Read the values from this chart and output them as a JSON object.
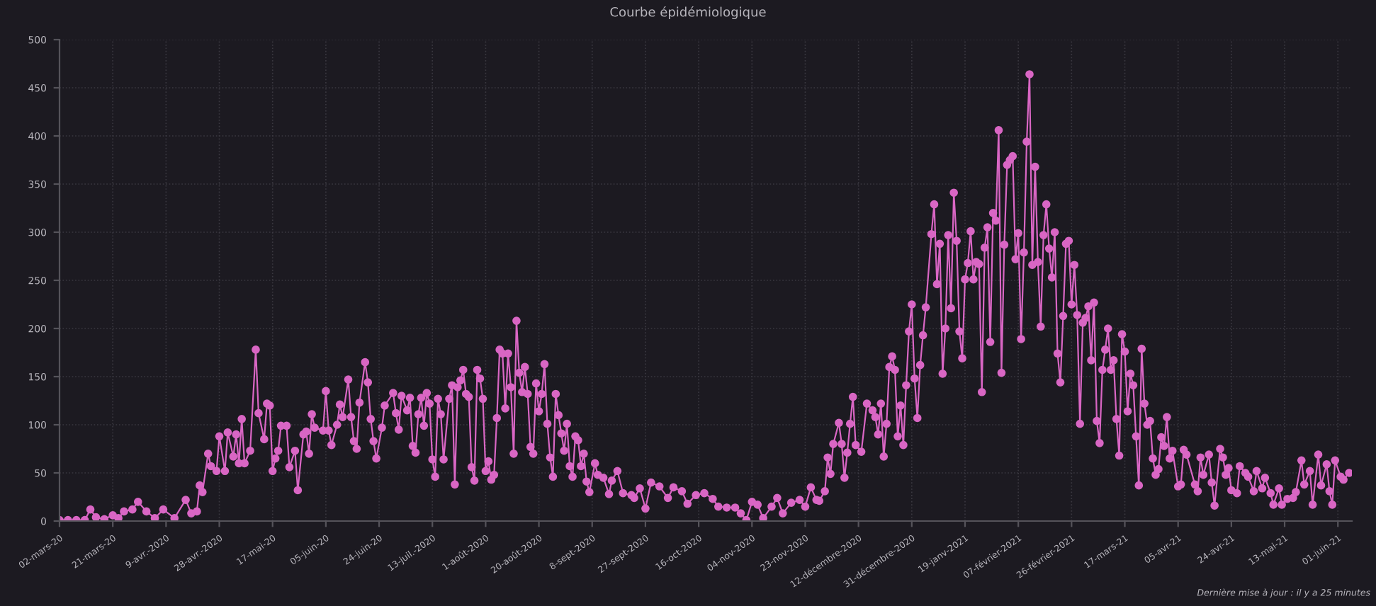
{
  "chart_data": {
    "type": "line",
    "title": "Courbe épidémiologique",
    "annotations": [
      "Dernière mise à jour : il y a 25 minutes"
    ],
    "xlim": [
      "2020-03-02",
      "2021-06-06"
    ],
    "ylim": [
      0,
      500
    ],
    "yticks": [
      0,
      50,
      100,
      150,
      200,
      250,
      300,
      350,
      400,
      450,
      500
    ],
    "xticks": [
      {
        "value": "2020-03-02",
        "label": "02-mars-20"
      },
      {
        "value": "2020-03-21",
        "label": "21-mars-20"
      },
      {
        "value": "2020-04-09",
        "label": "9-avr.-2020"
      },
      {
        "value": "2020-04-28",
        "label": "28-avr.-2020"
      },
      {
        "value": "2020-05-17",
        "label": "17-mai-20"
      },
      {
        "value": "2020-06-05",
        "label": "05-juin-20"
      },
      {
        "value": "2020-06-24",
        "label": "24-juin-20"
      },
      {
        "value": "2020-07-13",
        "label": "13-juil.-2020"
      },
      {
        "value": "2020-08-01",
        "label": "1-août-2020"
      },
      {
        "value": "2020-08-20",
        "label": "20-août-2020"
      },
      {
        "value": "2020-09-08",
        "label": "8-sept-2020"
      },
      {
        "value": "2020-09-27",
        "label": "27-sept-2020"
      },
      {
        "value": "2020-10-16",
        "label": "16-oct-2020"
      },
      {
        "value": "2020-11-04",
        "label": "04-nov-2020"
      },
      {
        "value": "2020-11-23",
        "label": "23-nov-2020"
      },
      {
        "value": "2020-12-12",
        "label": "12-décembre-2020"
      },
      {
        "value": "2020-12-31",
        "label": "31-décembre-2020"
      },
      {
        "value": "2021-01-19",
        "label": "19-janv-2021"
      },
      {
        "value": "2021-02-07",
        "label": "07-février-2021"
      },
      {
        "value": "2021-02-26",
        "label": "26-février-2021"
      },
      {
        "value": "2021-03-17",
        "label": "17-mars-21"
      },
      {
        "value": "2021-04-05",
        "label": "05-avr-21"
      },
      {
        "value": "2021-04-24",
        "label": "24-avr-21"
      },
      {
        "value": "2021-05-13",
        "label": "13-mai-21"
      },
      {
        "value": "2021-06-01",
        "label": "01-juin-21"
      }
    ],
    "grid": true,
    "marker": "circle",
    "line_style": "solid",
    "series": [
      {
        "color": "#d966c4",
        "x": [
          "2020-03-02",
          "2020-03-05",
          "2020-03-08",
          "2020-03-11",
          "2020-03-13",
          "2020-03-15",
          "2020-03-18",
          "2020-03-21",
          "2020-03-23",
          "2020-03-25",
          "2020-03-28",
          "2020-03-30",
          "2020-04-02",
          "2020-04-05",
          "2020-04-08",
          "2020-04-12",
          "2020-04-16",
          "2020-04-18",
          "2020-04-20",
          "2020-04-21",
          "2020-04-22",
          "2020-04-24",
          "2020-04-25",
          "2020-04-27",
          "2020-04-28",
          "2020-04-30",
          "2020-05-01",
          "2020-05-03",
          "2020-05-04",
          "2020-05-05",
          "2020-05-06",
          "2020-05-07",
          "2020-05-09",
          "2020-05-11",
          "2020-05-12",
          "2020-05-14",
          "2020-05-15",
          "2020-05-16",
          "2020-05-17",
          "2020-05-18",
          "2020-05-19",
          "2020-05-20",
          "2020-05-22",
          "2020-05-23",
          "2020-05-25",
          "2020-05-26",
          "2020-05-28",
          "2020-05-29",
          "2020-05-30",
          "2020-05-31",
          "2020-06-01",
          "2020-06-04",
          "2020-06-05",
          "2020-06-06",
          "2020-06-07",
          "2020-06-09",
          "2020-06-10",
          "2020-06-11",
          "2020-06-13",
          "2020-06-14",
          "2020-06-15",
          "2020-06-16",
          "2020-06-17",
          "2020-06-19",
          "2020-06-20",
          "2020-06-21",
          "2020-06-22",
          "2020-06-23",
          "2020-06-25",
          "2020-06-26",
          "2020-06-29",
          "2020-06-30",
          "2020-07-01",
          "2020-07-02",
          "2020-07-04",
          "2020-07-05",
          "2020-07-06",
          "2020-07-07",
          "2020-07-08",
          "2020-07-09",
          "2020-07-10",
          "2020-07-11",
          "2020-07-12",
          "2020-07-13",
          "2020-07-14",
          "2020-07-15",
          "2020-07-16",
          "2020-07-17",
          "2020-07-19",
          "2020-07-20",
          "2020-07-21",
          "2020-07-22",
          "2020-07-23",
          "2020-07-24",
          "2020-07-25",
          "2020-07-26",
          "2020-07-27",
          "2020-07-28",
          "2020-07-29",
          "2020-07-30",
          "2020-07-31",
          "2020-08-01",
          "2020-08-02",
          "2020-08-03",
          "2020-08-04",
          "2020-08-05",
          "2020-08-06",
          "2020-08-07",
          "2020-08-08",
          "2020-08-09",
          "2020-08-10",
          "2020-08-11",
          "2020-08-12",
          "2020-08-13",
          "2020-08-14",
          "2020-08-15",
          "2020-08-16",
          "2020-08-17",
          "2020-08-18",
          "2020-08-19",
          "2020-08-20",
          "2020-08-21",
          "2020-08-22",
          "2020-08-23",
          "2020-08-24",
          "2020-08-25",
          "2020-08-26",
          "2020-08-27",
          "2020-08-28",
          "2020-08-29",
          "2020-08-30",
          "2020-08-31",
          "2020-09-01",
          "2020-09-02",
          "2020-09-03",
          "2020-09-04",
          "2020-09-05",
          "2020-09-06",
          "2020-09-07",
          "2020-09-09",
          "2020-09-10",
          "2020-09-12",
          "2020-09-14",
          "2020-09-15",
          "2020-09-17",
          "2020-09-19",
          "2020-09-22",
          "2020-09-23",
          "2020-09-25",
          "2020-09-27",
          "2020-09-29",
          "2020-10-02",
          "2020-10-05",
          "2020-10-07",
          "2020-10-10",
          "2020-10-12",
          "2020-10-15",
          "2020-10-18",
          "2020-10-21",
          "2020-10-23",
          "2020-10-26",
          "2020-10-29",
          "2020-10-31",
          "2020-11-02",
          "2020-11-04",
          "2020-11-06",
          "2020-11-08",
          "2020-11-11",
          "2020-11-13",
          "2020-11-15",
          "2020-11-18",
          "2020-11-21",
          "2020-11-23",
          "2020-11-25",
          "2020-11-27",
          "2020-11-28",
          "2020-11-30",
          "2020-12-01",
          "2020-12-02",
          "2020-12-03",
          "2020-12-05",
          "2020-12-06",
          "2020-12-07",
          "2020-12-08",
          "2020-12-09",
          "2020-12-10",
          "2020-12-11",
          "2020-12-13",
          "2020-12-15",
          "2020-12-17",
          "2020-12-18",
          "2020-12-19",
          "2020-12-20",
          "2020-12-21",
          "2020-12-22",
          "2020-12-23",
          "2020-12-24",
          "2020-12-25",
          "2020-12-26",
          "2020-12-27",
          "2020-12-28",
          "2020-12-29",
          "2020-12-30",
          "2020-12-31",
          "2021-01-01",
          "2021-01-02",
          "2021-01-03",
          "2021-01-04",
          "2021-01-05",
          "2021-01-07",
          "2021-01-08",
          "2021-01-09",
          "2021-01-10",
          "2021-01-11",
          "2021-01-12",
          "2021-01-13",
          "2021-01-14",
          "2021-01-15",
          "2021-01-16",
          "2021-01-17",
          "2021-01-18",
          "2021-01-19",
          "2021-01-20",
          "2021-01-21",
          "2021-01-22",
          "2021-01-23",
          "2021-01-24",
          "2021-01-25",
          "2021-01-26",
          "2021-01-27",
          "2021-01-28",
          "2021-01-29",
          "2021-01-30",
          "2021-01-31",
          "2021-02-01",
          "2021-02-02",
          "2021-02-03",
          "2021-02-04",
          "2021-02-05",
          "2021-02-06",
          "2021-02-07",
          "2021-02-08",
          "2021-02-09",
          "2021-02-10",
          "2021-02-11",
          "2021-02-12",
          "2021-02-13",
          "2021-02-14",
          "2021-02-15",
          "2021-02-16",
          "2021-02-17",
          "2021-02-18",
          "2021-02-19",
          "2021-02-20",
          "2021-02-21",
          "2021-02-22",
          "2021-02-23",
          "2021-02-24",
          "2021-02-25",
          "2021-02-26",
          "2021-02-27",
          "2021-02-28",
          "2021-03-01",
          "2021-03-02",
          "2021-03-03",
          "2021-03-04",
          "2021-03-05",
          "2021-03-06",
          "2021-03-07",
          "2021-03-08",
          "2021-03-09",
          "2021-03-10",
          "2021-03-11",
          "2021-03-12",
          "2021-03-13",
          "2021-03-14",
          "2021-03-15",
          "2021-03-16",
          "2021-03-17",
          "2021-03-18",
          "2021-03-19",
          "2021-03-20",
          "2021-03-21",
          "2021-03-22",
          "2021-03-23",
          "2021-03-24",
          "2021-03-25",
          "2021-03-26",
          "2021-03-27",
          "2021-03-28",
          "2021-03-29",
          "2021-03-30",
          "2021-03-31",
          "2021-04-01",
          "2021-04-02",
          "2021-04-03",
          "2021-04-05",
          "2021-04-06",
          "2021-04-07",
          "2021-04-08",
          "2021-04-11",
          "2021-04-12",
          "2021-04-13",
          "2021-04-14",
          "2021-04-16",
          "2021-04-17",
          "2021-04-18",
          "2021-04-20",
          "2021-04-21",
          "2021-04-22",
          "2021-04-23",
          "2021-04-24",
          "2021-04-26",
          "2021-04-27",
          "2021-04-29",
          "2021-04-30",
          "2021-05-02",
          "2021-05-03",
          "2021-05-05",
          "2021-05-06",
          "2021-05-08",
          "2021-05-09",
          "2021-05-11",
          "2021-05-12",
          "2021-05-14",
          "2021-05-16",
          "2021-05-17",
          "2021-05-19",
          "2021-05-20",
          "2021-05-22",
          "2021-05-23",
          "2021-05-25",
          "2021-05-26",
          "2021-05-28",
          "2021-05-29",
          "2021-05-30",
          "2021-05-31",
          "2021-06-02",
          "2021-06-03",
          "2021-06-05"
        ],
        "values": [
          1,
          1,
          1,
          1,
          12,
          4,
          2,
          6,
          3,
          10,
          12,
          20,
          10,
          3,
          12,
          3,
          22,
          8,
          10,
          37,
          30,
          70,
          57,
          52,
          88,
          52,
          92,
          67,
          90,
          60,
          106,
          60,
          73,
          178,
          112,
          85,
          122,
          120,
          52,
          65,
          73,
          99,
          99,
          56,
          73,
          32,
          90,
          93,
          70,
          111,
          97,
          94,
          135,
          94,
          79,
          100,
          121,
          108,
          147,
          108,
          83,
          75,
          123,
          165,
          144,
          106,
          83,
          65,
          97,
          120,
          133,
          112,
          95,
          130,
          115,
          128,
          78,
          71,
          111,
          128,
          99,
          133,
          122,
          64,
          46,
          127,
          111,
          64,
          127,
          141,
          38,
          139,
          146,
          157,
          132,
          129,
          56,
          42,
          157,
          148,
          127,
          52,
          62,
          43,
          48,
          107,
          178,
          174,
          117,
          174,
          139,
          70,
          208,
          154,
          134,
          160,
          132,
          77,
          70,
          143,
          114,
          132,
          163,
          101,
          66,
          46,
          132,
          110,
          91,
          73,
          101,
          57,
          46,
          88,
          84,
          57,
          70,
          41,
          30,
          60,
          48,
          45,
          28,
          42,
          52,
          29,
          27,
          24,
          34,
          13,
          40,
          36,
          24,
          35,
          31,
          18,
          27,
          29,
          23,
          15,
          14,
          14,
          8,
          1,
          20,
          17,
          3,
          15,
          24,
          8,
          19,
          22,
          15,
          35,
          22,
          21,
          31,
          66,
          49,
          80,
          102,
          80,
          45,
          71,
          101,
          129,
          79,
          72,
          122,
          115,
          108,
          90,
          122,
          67,
          101,
          160,
          171,
          157,
          88,
          120,
          79,
          141,
          197,
          225,
          148,
          107,
          162,
          193,
          222,
          298,
          329,
          246,
          288,
          153,
          200,
          297,
          221,
          341,
          291,
          197,
          169,
          251,
          268,
          301,
          251,
          269,
          267,
          134,
          284,
          305,
          186,
          320,
          312,
          406,
          154,
          287,
          370,
          375,
          379,
          272,
          299,
          189,
          279,
          394,
          464,
          266,
          368,
          269,
          202,
          297,
          329,
          283,
          253,
          300,
          174,
          144,
          213,
          288,
          291,
          225,
          266,
          214,
          101,
          206,
          211,
          223,
          167,
          227,
          104,
          81,
          157,
          178,
          200,
          157,
          167,
          106,
          68,
          194,
          176,
          114,
          153,
          141,
          88,
          37,
          179,
          122,
          100,
          104,
          65,
          48,
          54,
          87,
          78,
          108,
          65,
          73,
          36,
          38,
          74,
          69,
          38,
          31,
          66,
          48,
          69,
          40,
          16,
          75,
          66,
          48,
          55,
          32,
          29,
          57,
          50,
          46,
          31,
          52,
          34,
          45,
          29,
          17,
          34,
          17,
          23,
          24,
          30,
          63,
          38,
          52,
          17,
          69,
          37,
          59,
          31,
          17,
          63,
          46,
          43,
          50
        ]
      }
    ]
  }
}
